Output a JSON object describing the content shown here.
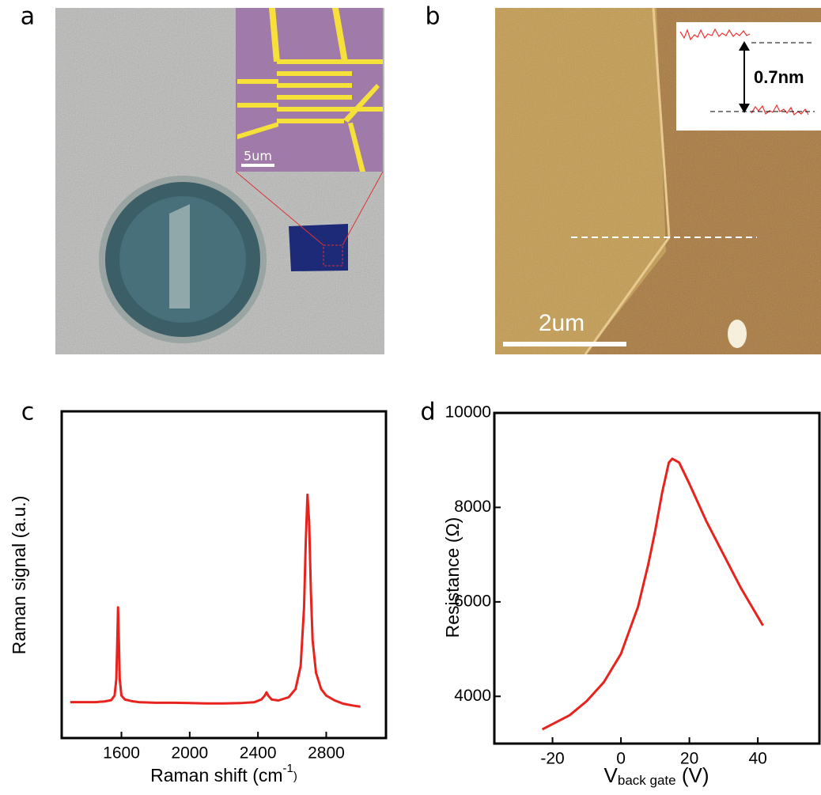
{
  "figure": {
    "panel_labels": [
      "a",
      "b",
      "c",
      "d"
    ],
    "a_inset_scale": "5um",
    "b_inset_step": "0.7nm",
    "b_scale": "2um"
  },
  "chart_data": [
    {
      "type": "line",
      "color": "#e8231e",
      "xlabel": "Raman shift (cm",
      "xlabel_sup": "-1",
      "xlabel_end": ")",
      "ylabel": "Raman signal (a.u.)",
      "x": [
        1300,
        1350,
        1400,
        1450,
        1500,
        1540,
        1560,
        1570,
        1575,
        1580,
        1585,
        1590,
        1600,
        1620,
        1660,
        1700,
        1800,
        1900,
        2000,
        2100,
        2200,
        2300,
        2380,
        2420,
        2440,
        2450,
        2460,
        2480,
        2520,
        2580,
        2620,
        2650,
        2670,
        2680,
        2690,
        2700,
        2710,
        2720,
        2740,
        2770,
        2800,
        2850,
        2900,
        2950,
        3000
      ],
      "values": [
        11,
        11,
        11,
        11,
        11.2,
        11.6,
        13,
        18,
        28,
        40,
        30,
        18,
        13,
        11.8,
        11.3,
        11,
        10.8,
        10.8,
        10.7,
        10.6,
        10.6,
        10.7,
        11,
        11.8,
        13,
        14,
        13,
        11.8,
        11.5,
        12.5,
        15,
        22,
        40,
        60,
        74.5,
        66,
        45,
        30,
        20,
        15,
        13,
        11.5,
        10.5,
        10,
        9.6
      ],
      "xlim": [
        1250,
        3150
      ],
      "xticks": [
        1600,
        2000,
        2400,
        2800
      ],
      "ylim": [
        0,
        100
      ]
    },
    {
      "type": "line",
      "color": "#e8231e",
      "xlabel": "V",
      "xlabel_sub": "back gate",
      "xlabel_end": " (V)",
      "ylabel": "Resistance (Ω)",
      "x": [
        -23,
        -15,
        -10,
        -5,
        0,
        5,
        8,
        10,
        12,
        14,
        15,
        17,
        20,
        25,
        30,
        35,
        41.5
      ],
      "values": [
        3300,
        3600,
        3900,
        4300,
        4900,
        5900,
        6800,
        7500,
        8300,
        8950,
        9030,
        8950,
        8500,
        7700,
        7000,
        6300,
        5500
      ],
      "xlim": [
        -37,
        58
      ],
      "xticks": [
        -20,
        0,
        20,
        40
      ],
      "ylim": [
        3000,
        10000
      ],
      "yticks": [
        4000,
        6000,
        8000,
        10000
      ]
    }
  ]
}
